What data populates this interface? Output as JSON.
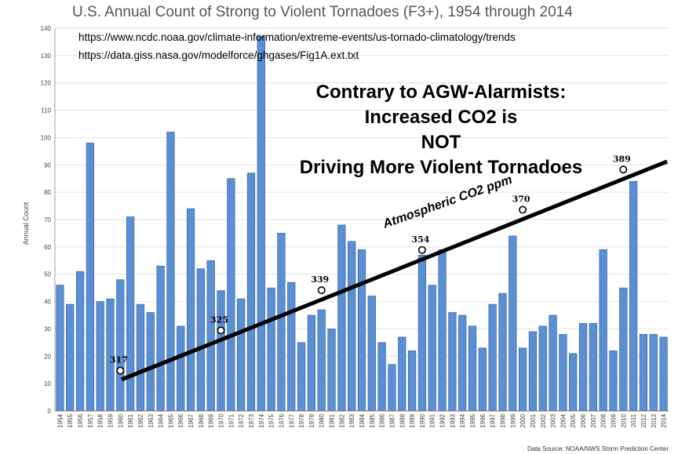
{
  "chart_data": {
    "type": "bar",
    "title": "U.S. Annual Count of Strong to Violent Tornadoes (F3+), 1954 through 2014",
    "xlabel": "",
    "ylabel": "Annual Count",
    "ylim": [
      0,
      140
    ],
    "yticks": [
      0,
      10,
      20,
      30,
      40,
      50,
      60,
      70,
      80,
      90,
      100,
      110,
      120,
      130,
      140
    ],
    "grid": true,
    "categories": [
      "1954",
      "1955",
      "1956",
      "1957",
      "1958",
      "1959",
      "1960",
      "1961",
      "1962",
      "1963",
      "1964",
      "1965",
      "1966",
      "1967",
      "1968",
      "1969",
      "1970",
      "1971",
      "1972",
      "1973",
      "1974",
      "1975",
      "1976",
      "1977",
      "1978",
      "1979",
      "1980",
      "1981",
      "1982",
      "1983",
      "1984",
      "1985",
      "1986",
      "1987",
      "1988",
      "1989",
      "1990",
      "1991",
      "1992",
      "1993",
      "1994",
      "1995",
      "1996",
      "1997",
      "1998",
      "1999",
      "2000",
      "2001",
      "2002",
      "2003",
      "2004",
      "2005",
      "2006",
      "2007",
      "2008",
      "2009",
      "2010",
      "2011",
      "2012",
      "2013",
      "2014"
    ],
    "values": [
      46,
      39,
      51,
      98,
      40,
      41,
      48,
      71,
      39,
      36,
      53,
      102,
      31,
      74,
      52,
      55,
      44,
      85,
      41,
      87,
      137,
      45,
      65,
      47,
      25,
      35,
      37,
      30,
      68,
      62,
      59,
      42,
      25,
      17,
      27,
      22,
      57,
      46,
      59,
      36,
      35,
      31,
      23,
      39,
      43,
      64,
      23,
      29,
      31,
      35,
      28,
      21,
      32,
      32,
      59,
      22,
      45,
      84,
      28,
      28,
      27
    ],
    "source_urls": [
      "https://www.ncdc.noaa.gov/climate-information/extreme-events/us-tornado-climatology/trends",
      "https://data.giss.nasa.gov/modelforce/ghgases/Fig1A.ext.txt"
    ],
    "headline": [
      "Contrary to AGW-Alarmists:",
      "Increased CO2 is",
      "NOT",
      "Driving More Violent Tornadoes"
    ],
    "trend_line": {
      "label": "Atmospheric CO2  ppm",
      "color": "#000000",
      "points": [
        {
          "year": "1960",
          "label": "317"
        },
        {
          "year": "1970",
          "label": "325"
        },
        {
          "year": "1980",
          "label": "339"
        },
        {
          "year": "1990",
          "label": "354"
        },
        {
          "year": "2000",
          "label": "370"
        },
        {
          "year": "2010",
          "label": "389"
        }
      ]
    },
    "source_note": "Data Source: NOAA/NWS Storm Prediction Center",
    "bar_color": "#5b8fd4"
  }
}
